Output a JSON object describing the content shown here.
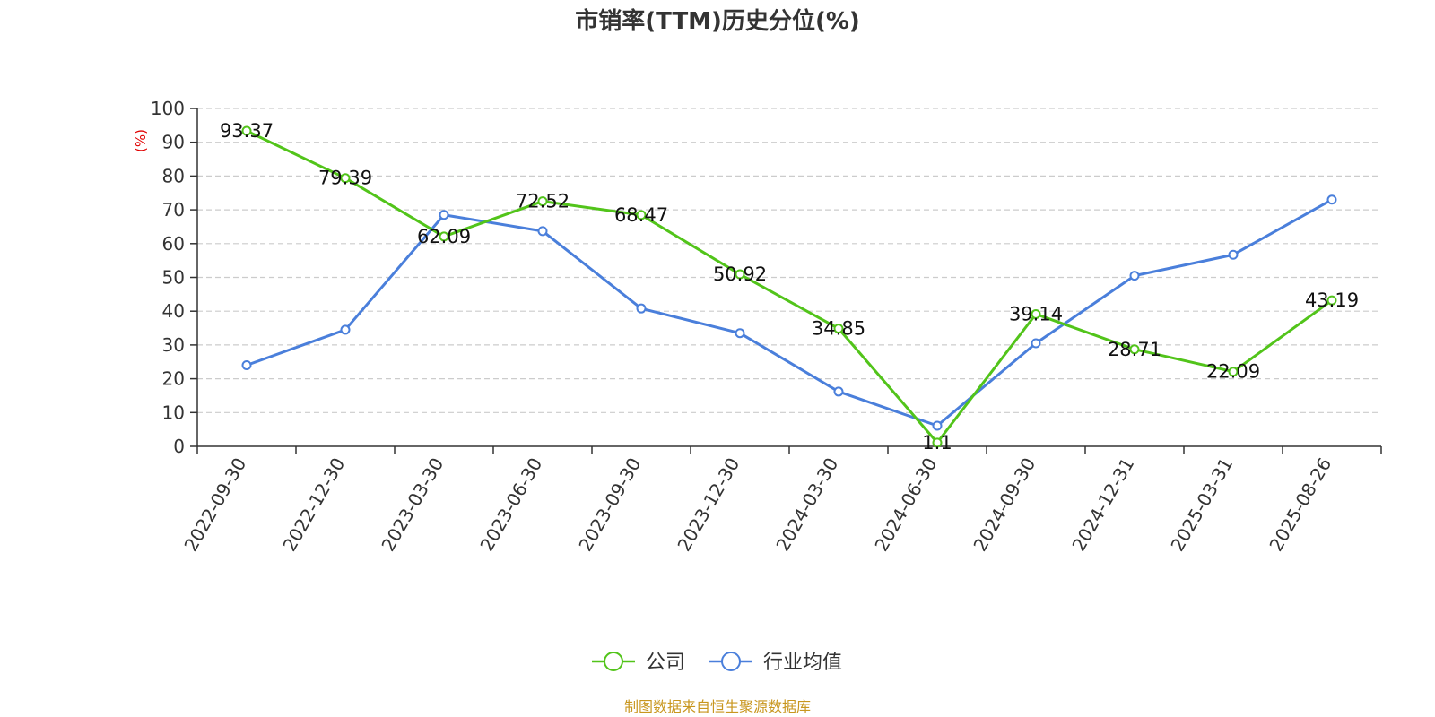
{
  "chart_data": {
    "type": "line",
    "title": "市销率(TTM)历史分位(%)",
    "ylabel": "(%)",
    "xlabel": "",
    "categories": [
      "2022-09-30",
      "2022-12-30",
      "2023-03-30",
      "2023-06-30",
      "2023-09-30",
      "2023-12-30",
      "2024-03-30",
      "2024-06-30",
      "2024-09-30",
      "2024-12-31",
      "2025-03-31",
      "2025-08-26"
    ],
    "ylim": [
      0,
      100
    ],
    "yticks": [
      0,
      10,
      20,
      30,
      40,
      50,
      60,
      70,
      80,
      90,
      100
    ],
    "grid": true,
    "legend_position": "bottom-center",
    "series": [
      {
        "name": "公司",
        "color": "#52c41a",
        "values": [
          93.37,
          79.39,
          62.09,
          72.52,
          68.47,
          50.92,
          34.85,
          1.1,
          39.14,
          28.71,
          22.09,
          43.19
        ],
        "labels": [
          "93.37",
          "79.39",
          "62.09",
          "72.52",
          "68.47",
          "50.92",
          "34.85",
          "1.1",
          "39.14",
          "28.71",
          "22.09",
          "43.19"
        ]
      },
      {
        "name": "行业均值",
        "color": "#4a7fdb",
        "values": [
          24.0,
          34.5,
          68.5,
          63.7,
          40.8,
          33.5,
          16.2,
          6.1,
          30.5,
          50.5,
          56.7,
          73.0
        ]
      }
    ]
  },
  "source": "制图数据来自恒生聚源数据库"
}
